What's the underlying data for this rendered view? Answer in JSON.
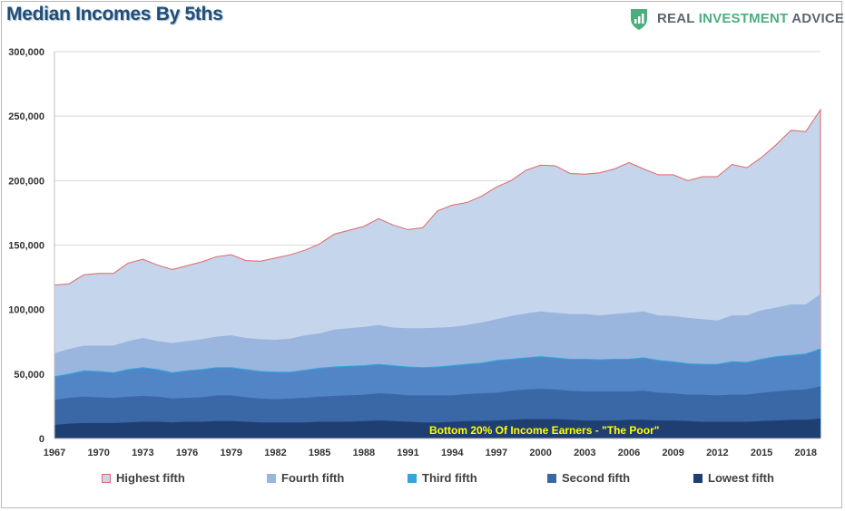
{
  "title": "Median Incomes By 5ths",
  "logo": {
    "word1": "REAL ",
    "word2": "INVESTMENT",
    "word3": " ADVICE",
    "icon": "shield-chart-icon"
  },
  "annotation": "Bottom 20% Of Income Earners - \"The Poor\"",
  "legend": {
    "highest": "Highest fifth",
    "fourth": "Fourth fifth",
    "third": "Third fifth",
    "second": "Second fifth",
    "lowest": "Lowest fifth"
  },
  "colors": {
    "highest": "#c5d5ec",
    "highest_line": "#e06666",
    "fourth": "#9ab5de",
    "third": "#5285c6",
    "third_line": "#2ea6e0",
    "second": "#3a67a5",
    "lowest": "#1f3f72",
    "annotation_text": "#ffff00"
  },
  "chart_data": {
    "type": "area",
    "stacked": false,
    "ylim": [
      0,
      300000
    ],
    "y_ticks": [
      "0",
      "50,000",
      "100,000",
      "150,000",
      "200,000",
      "250,000",
      "300,000"
    ],
    "x_tick_labels": [
      "1967",
      "1970",
      "1973",
      "1976",
      "1979",
      "1982",
      "1985",
      "1988",
      "1991",
      "1994",
      "1997",
      "2000",
      "2003",
      "2006",
      "2009",
      "2012",
      "2015",
      "2018"
    ],
    "grid": true,
    "legend_position": "bottom",
    "x": [
      1967,
      1968,
      1969,
      1970,
      1971,
      1972,
      1973,
      1974,
      1975,
      1976,
      1977,
      1978,
      1979,
      1980,
      1981,
      1982,
      1983,
      1984,
      1985,
      1986,
      1987,
      1988,
      1989,
      1990,
      1991,
      1992,
      1993,
      1994,
      1995,
      1996,
      1997,
      1998,
      1999,
      2000,
      2001,
      2002,
      2003,
      2004,
      2005,
      2006,
      2007,
      2008,
      2009,
      2010,
      2011,
      2012,
      2013,
      2014,
      2015,
      2016,
      2017,
      2018,
      2019
    ],
    "series": [
      {
        "name": "Highest fifth",
        "values": [
          119000,
          120000,
          127000,
          128000,
          128000,
          136000,
          139000,
          134500,
          131000,
          134000,
          137000,
          141000,
          142500,
          138000,
          137500,
          140000,
          142500,
          146000,
          151000,
          158500,
          161500,
          164500,
          170500,
          165500,
          162000,
          163500,
          176500,
          181000,
          183000,
          188000,
          195000,
          200000,
          208000,
          212000,
          211500,
          205500,
          205000,
          206000,
          209000,
          214000,
          209000,
          204500,
          204500,
          200000,
          203000,
          203000,
          212500,
          210000,
          218000,
          228000,
          239000,
          238000,
          255000
        ]
      },
      {
        "name": "Fourth fifth",
        "values": [
          66000,
          69500,
          72000,
          72000,
          72000,
          75500,
          78000,
          75500,
          74000,
          75500,
          77000,
          79000,
          80000,
          78000,
          77000,
          76500,
          77500,
          80000,
          81500,
          84500,
          85500,
          86500,
          88000,
          86000,
          85500,
          85500,
          86000,
          86500,
          88000,
          90000,
          92500,
          95000,
          97000,
          98500,
          97500,
          96500,
          96500,
          95500,
          96500,
          97500,
          98500,
          95500,
          95000,
          93500,
          92500,
          91500,
          95500,
          95500,
          99500,
          101500,
          104000,
          104000,
          112000
        ]
      },
      {
        "name": "Third fifth",
        "values": [
          48000,
          50000,
          52500,
          52000,
          51000,
          53500,
          55000,
          53500,
          51000,
          52500,
          53500,
          55000,
          55000,
          53500,
          52000,
          51500,
          51500,
          53000,
          54500,
          55500,
          56000,
          56500,
          57500,
          56500,
          55500,
          55000,
          55500,
          56500,
          57500,
          58500,
          60500,
          61500,
          62500,
          63500,
          62500,
          61500,
          61500,
          61000,
          61500,
          61500,
          62500,
          60500,
          59500,
          58000,
          57500,
          57500,
          59500,
          59000,
          61500,
          63500,
          64500,
          65500,
          69500
        ]
      },
      {
        "name": "Second fifth",
        "values": [
          30000,
          31500,
          32500,
          32000,
          31500,
          32500,
          33000,
          32500,
          31000,
          31500,
          32000,
          33500,
          33500,
          32000,
          31000,
          30500,
          31000,
          31500,
          32500,
          33000,
          33500,
          34000,
          35000,
          34500,
          33500,
          33500,
          33500,
          33500,
          34500,
          35000,
          35500,
          37000,
          38000,
          38500,
          38000,
          37000,
          36500,
          36500,
          36500,
          36500,
          37000,
          35500,
          35000,
          34000,
          34000,
          33500,
          34000,
          34000,
          35500,
          36500,
          37500,
          38000,
          40500
        ]
      },
      {
        "name": "Lowest fifth",
        "values": [
          10500,
          11500,
          12000,
          12000,
          12000,
          12500,
          13000,
          13000,
          12500,
          13000,
          13000,
          13500,
          13500,
          13000,
          12500,
          12500,
          12500,
          12500,
          13000,
          13000,
          13000,
          13500,
          14000,
          13500,
          13000,
          12500,
          12500,
          13000,
          13500,
          13500,
          14000,
          14500,
          15000,
          15000,
          15000,
          14500,
          14000,
          14000,
          14000,
          14500,
          14500,
          14000,
          14000,
          13500,
          13000,
          13000,
          13000,
          13000,
          13500,
          14000,
          14500,
          14500,
          15500
        ]
      }
    ]
  }
}
